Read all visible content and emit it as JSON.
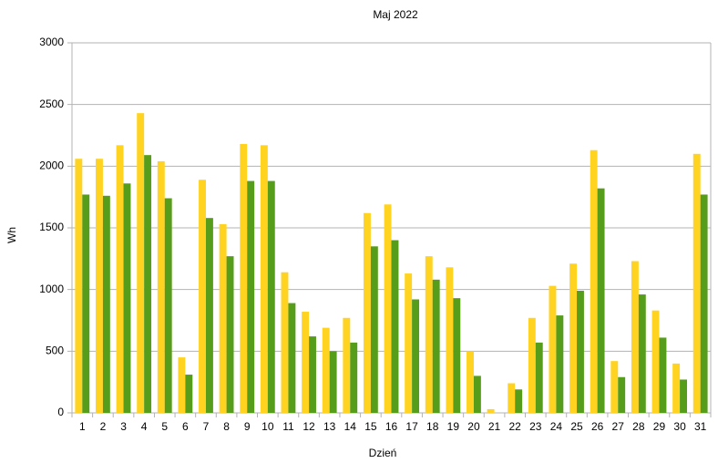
{
  "chart_data": {
    "type": "bar",
    "title": "Maj 2022",
    "x_label": "Dzień",
    "y_label": "Wh",
    "categories": [
      "1",
      "2",
      "3",
      "4",
      "5",
      "6",
      "7",
      "8",
      "9",
      "10",
      "11",
      "12",
      "13",
      "14",
      "15",
      "16",
      "17",
      "18",
      "19",
      "20",
      "21",
      "22",
      "23",
      "24",
      "25",
      "26",
      "27",
      "28",
      "29",
      "30",
      "31"
    ],
    "series": [
      {
        "color": "#ffd320",
        "values": [
          2060,
          2060,
          2170,
          2430,
          2040,
          450,
          1890,
          1530,
          2180,
          2170,
          1140,
          820,
          690,
          770,
          1620,
          1690,
          1130,
          1270,
          1180,
          500,
          30,
          240,
          770,
          1030,
          1210,
          2130,
          420,
          1230,
          830,
          400,
          2100
        ]
      },
      {
        "color": "#579d1c",
        "values": [
          1770,
          1760,
          1860,
          2090,
          1740,
          310,
          1580,
          1270,
          1880,
          1880,
          890,
          620,
          500,
          570,
          1350,
          1400,
          920,
          1080,
          930,
          300,
          0,
          190,
          570,
          790,
          990,
          1820,
          290,
          960,
          610,
          270,
          1770
        ]
      }
    ],
    "ylim": [
      0,
      3000
    ],
    "yticks": [
      0,
      500,
      1000,
      1500,
      2000,
      2500,
      3000
    ],
    "grid": true
  }
}
